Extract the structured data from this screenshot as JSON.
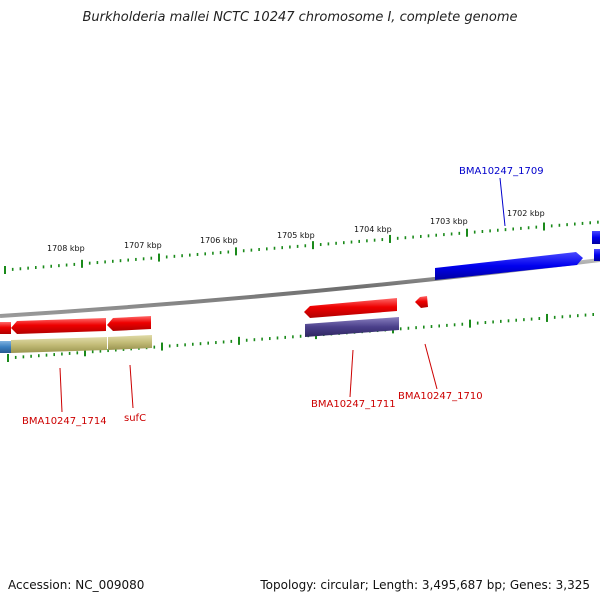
{
  "title": "Burkholderia mallei NCTC 10247 chromosome I, complete genome",
  "footer": {
    "accession": "Accession: NC_009080",
    "topology": "Topology: circular; Length: 3,495,687 bp; Genes: 3,325"
  },
  "colors": {
    "forward_cds": "#0000ee",
    "reverse_cds": "#ee0000",
    "reverse_feature_purple": "#4a3f8a",
    "reverse_feature_olive": "#c2bb76",
    "reverse_feature_blue": "#3a7fc0",
    "backbone": "#808080",
    "ticks": "#1a8a1a",
    "label_blue": "#0000cc",
    "label_red": "#cc0000"
  },
  "scale": {
    "unit": "kbp",
    "tick_labels": [
      "1702 kbp",
      "1703 kbp",
      "1704 kbp",
      "1705 kbp",
      "1706 kbp",
      "1707 kbp",
      "1708 kbp"
    ]
  },
  "gene_labels": {
    "g1709": "BMA10247_1709",
    "g1710": "BMA10247_1710",
    "g1711": "BMA10247_1711",
    "g1714": "BMA10247_1714",
    "sufC": "sufC"
  }
}
